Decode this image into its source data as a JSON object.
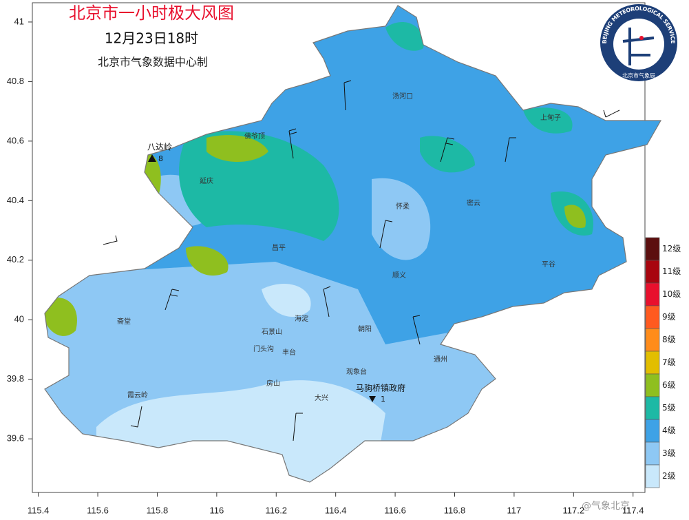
{
  "header": {
    "title": "北京市一小时极大风图",
    "date": "12月23日18时",
    "subtitle": "北京市气象数据中心制"
  },
  "axes": {
    "xlim": [
      115.38,
      117.44
    ],
    "ylim": [
      39.42,
      41.06
    ],
    "xticks": [
      115.4,
      115.6,
      115.8,
      116,
      116.2,
      116.4,
      116.6,
      116.8,
      117,
      117.2,
      117.4
    ],
    "yticks": [
      41,
      40.8,
      40.6,
      40.4,
      40.2,
      40,
      39.8,
      39.6
    ]
  },
  "places": [
    "汤河口",
    "上甸子",
    "佛爷顶",
    "延庆",
    "密云",
    "怀柔",
    "昌平",
    "平谷",
    "顺义",
    "斋堂",
    "海淀",
    "石景山",
    "朝阳",
    "门头沟",
    "丰台",
    "通州",
    "观象台",
    "房山",
    "大兴",
    "霞云岭"
  ],
  "stations": [
    {
      "name": "八达岭",
      "level": "8"
    },
    {
      "name": "马驹桥镇政府",
      "level": "1"
    }
  ],
  "legend": {
    "levels": [
      {
        "label": "12级",
        "color": "#5c0f0f"
      },
      {
        "label": "11级",
        "color": "#a8050f"
      },
      {
        "label": "10级",
        "color": "#e8102d"
      },
      {
        "label": "9级",
        "color": "#ff5a1f"
      },
      {
        "label": "8级",
        "color": "#ff8c1a"
      },
      {
        "label": "7级",
        "color": "#e2be00"
      },
      {
        "label": "6级",
        "color": "#8fbf1f"
      },
      {
        "label": "5级",
        "color": "#1db9a5"
      },
      {
        "label": "4级",
        "color": "#3ea2e6"
      },
      {
        "label": "3级",
        "color": "#8ec8f4"
      },
      {
        "label": "2级",
        "color": "#c9e8fb"
      }
    ]
  },
  "logo": {
    "name_en": "BEIJING METEOROLOGICAL SERVICE",
    "name_cn": "北京市气象局"
  },
  "watermark": "@气象北京"
}
